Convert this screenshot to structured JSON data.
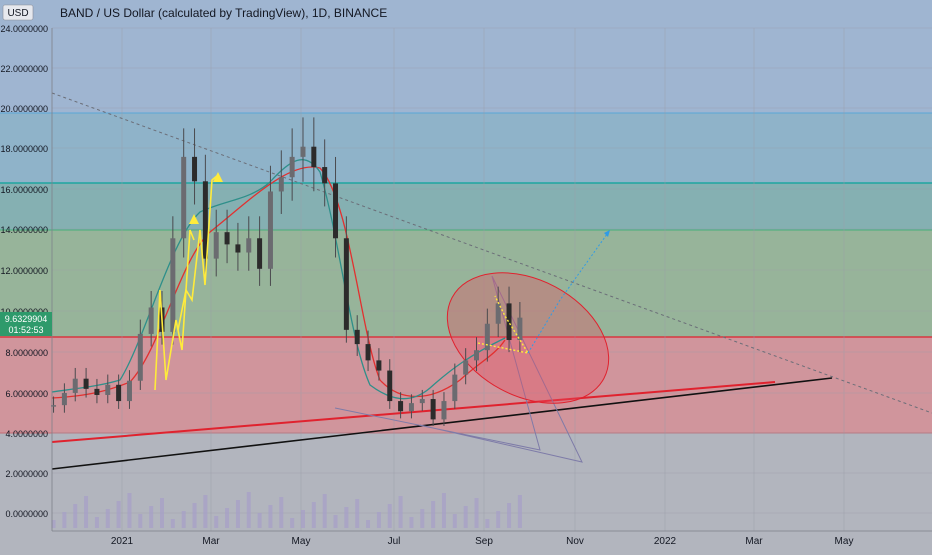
{
  "header": {
    "currency_badge": "USD",
    "title": "BAND / US Dollar (calculated by TradingView), 1D, BINANCE"
  },
  "price_tag": {
    "price": "9.6329904",
    "countdown": "01:52:53"
  },
  "y_ticks": [
    "24.0000000",
    "22.0000000",
    "20.0000000",
    "18.0000000",
    "16.0000000",
    "14.0000000",
    "12.0000000",
    "10.0000000",
    "8.0000000",
    "6.0000000",
    "4.0000000",
    "2.0000000",
    "0.0000000"
  ],
  "x_ticks": [
    "2021",
    "Mar",
    "May",
    "Jul",
    "Sep",
    "Nov",
    "2022",
    "Mar",
    "May"
  ],
  "colors": {
    "bg_base": "#b2b5be",
    "zone_top_blue": "#9fb5d1",
    "zone_mid_blue": "#8fb3c9",
    "zone_teal": "#85b0b2",
    "zone_green": "#97b49a",
    "zone_red": "#d0959c",
    "candle_body": "#2c2b2b",
    "ema_fast": "#2e8f8a",
    "ema_slow": "#e2302f",
    "yellow": "#ffeb3b",
    "trend_red": "#e0222e",
    "trend_black": "#111111",
    "drawing_purple": "#7e7ba8",
    "arrow_blue": "#2f9be6",
    "volume": "#a69ec7",
    "price_tag": "#2e9a6b"
  },
  "chart_data": {
    "type": "candlestick",
    "title": "BAND / US Dollar (calculated by TradingView), 1D, BINANCE",
    "ylim": [
      -1,
      25
    ],
    "x_range": [
      "2020-11-14",
      "2022-06-05"
    ],
    "series": [
      {
        "points": [
          [
            "2020-11-15",
            5.3
          ],
          [
            "2020-11-22",
            5.9
          ],
          [
            "2020-11-29",
            6.6
          ],
          [
            "2020-12-06",
            6.1
          ],
          [
            "2020-12-13",
            5.8
          ],
          [
            "2020-12-20",
            6.3
          ],
          [
            "2020-12-27",
            5.5
          ],
          [
            "2021-01-03",
            6.5
          ],
          [
            "2021-01-10",
            8.8
          ],
          [
            "2021-01-17",
            10.1
          ],
          [
            "2021-01-24",
            8.9
          ],
          [
            "2021-01-31",
            13.5
          ],
          [
            "2021-02-07",
            17.5
          ],
          [
            "2021-02-14",
            16.3
          ],
          [
            "2021-02-21",
            12.5
          ],
          [
            "2021-02-28",
            13.8
          ],
          [
            "2021-03-07",
            13.2
          ],
          [
            "2021-03-14",
            12.8
          ],
          [
            "2021-03-21",
            13.5
          ],
          [
            "2021-03-28",
            12.0
          ],
          [
            "2021-04-04",
            15.8
          ],
          [
            "2021-04-11",
            16.5
          ],
          [
            "2021-04-18",
            17.5
          ],
          [
            "2021-04-25",
            18.0
          ],
          [
            "2021-05-02",
            17.0
          ],
          [
            "2021-05-09",
            16.2
          ],
          [
            "2021-05-16",
            13.5
          ],
          [
            "2021-05-23",
            9.0
          ],
          [
            "2021-05-30",
            8.3
          ],
          [
            "2021-06-06",
            7.5
          ],
          [
            "2021-06-13",
            7.0
          ],
          [
            "2021-06-20",
            5.5
          ],
          [
            "2021-06-27",
            5.0
          ],
          [
            "2021-07-04",
            5.4
          ],
          [
            "2021-07-11",
            5.6
          ],
          [
            "2021-07-18",
            4.6
          ],
          [
            "2021-07-25",
            5.5
          ],
          [
            "2021-08-01",
            6.8
          ],
          [
            "2021-08-08",
            7.5
          ],
          [
            "2021-08-15",
            8.0
          ],
          [
            "2021-08-22",
            9.3
          ],
          [
            "2021-08-29",
            10.3
          ],
          [
            "2021-09-05",
            8.5
          ],
          [
            "2021-09-12",
            9.6
          ]
        ]
      }
    ]
  }
}
